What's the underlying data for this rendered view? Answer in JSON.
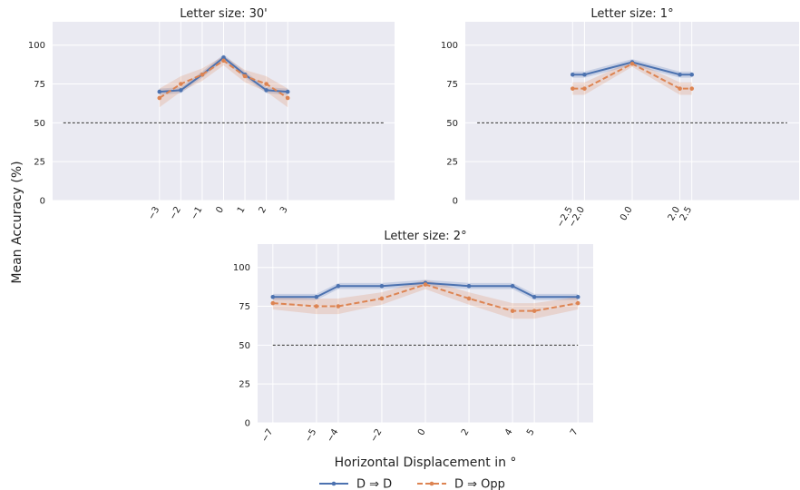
{
  "ylabel": "Mean Accuracy (%)",
  "xlabel": "Horizontal Displacement in °",
  "legend": [
    {
      "label": "D ⇒ D",
      "color": "#4c72b0",
      "dash": "solid"
    },
    {
      "label": "D ⇒ Opp",
      "color": "#dd8452",
      "dash": "dashed"
    }
  ],
  "chart_data": [
    {
      "type": "line",
      "title": "Letter size: 30'",
      "ylim": [
        0,
        115
      ],
      "yticks": [
        0,
        25,
        50,
        75,
        100
      ],
      "xlim": [
        -8,
        8
      ],
      "xticks": [
        -3,
        -2,
        -1,
        0,
        1,
        2,
        3
      ],
      "xticklabels": [
        "−3",
        "−2",
        "−1",
        "0",
        "1",
        "2",
        "3"
      ],
      "chance": {
        "y": 50,
        "x": [
          -7.5,
          7.5
        ]
      },
      "series": [
        {
          "name": "D ⇒ D",
          "x": [
            -3,
            -2,
            -1,
            0,
            1,
            2,
            3
          ],
          "y": [
            70,
            71,
            81,
            92,
            81,
            71,
            70
          ],
          "ci": [
            2,
            2,
            2,
            2,
            2,
            2,
            2
          ]
        },
        {
          "name": "D ⇒ Opp",
          "x": [
            -3,
            -2,
            -1,
            0,
            1,
            2,
            3
          ],
          "y": [
            66,
            75,
            81,
            90,
            80,
            75,
            66
          ],
          "ci": [
            6,
            5,
            4,
            3,
            4,
            5,
            6
          ]
        }
      ]
    },
    {
      "type": "line",
      "title": "Letter size: 1°",
      "ylim": [
        0,
        115
      ],
      "yticks": [
        0,
        25,
        50,
        75,
        100
      ],
      "xlim": [
        -7,
        7
      ],
      "xticks": [
        -2.5,
        -2.0,
        0.0,
        2.0,
        2.5
      ],
      "xticklabels": [
        "−2.5",
        "−2.0",
        "0.0",
        "2.0",
        "2.5"
      ],
      "chance": {
        "y": 50,
        "x": [
          -6.5,
          6.5
        ]
      },
      "series": [
        {
          "name": "D ⇒ D",
          "x": [
            -2.5,
            -2.0,
            0.0,
            2.0,
            2.5
          ],
          "y": [
            81,
            81,
            89,
            81,
            81
          ],
          "ci": [
            2,
            2,
            2,
            2,
            2
          ]
        },
        {
          "name": "D ⇒ Opp",
          "x": [
            -2.5,
            -2.0,
            0.0,
            2.0,
            2.5
          ],
          "y": [
            72,
            72,
            88,
            72,
            72
          ],
          "ci": [
            4,
            4,
            2,
            4,
            4
          ]
        }
      ]
    },
    {
      "type": "line",
      "title": "Letter size: 2°",
      "ylim": [
        0,
        115
      ],
      "yticks": [
        0,
        25,
        50,
        75,
        100
      ],
      "xlim": [
        -7.7,
        7.7
      ],
      "xticks": [
        -7,
        -5,
        -4,
        -2,
        0,
        2,
        4,
        5,
        7
      ],
      "xticklabels": [
        "−7",
        "−5",
        "−4",
        "−2",
        "0",
        "2",
        "4",
        "5",
        "7"
      ],
      "chance": {
        "y": 50,
        "x": [
          -7,
          7
        ]
      },
      "series": [
        {
          "name": "D ⇒ D",
          "x": [
            -7,
            -5,
            -4,
            -2,
            0,
            2,
            4,
            5,
            7
          ],
          "y": [
            81,
            81,
            88,
            88,
            90,
            88,
            88,
            81,
            81
          ],
          "ci": [
            2,
            2,
            2,
            2,
            2,
            2,
            2,
            2,
            2
          ]
        },
        {
          "name": "D ⇒ Opp",
          "x": [
            -7,
            -5,
            -4,
            -2,
            0,
            2,
            4,
            5,
            7
          ],
          "y": [
            77,
            75,
            75,
            80,
            89,
            80,
            72,
            72,
            77
          ],
          "ci": [
            4,
            5,
            5,
            4,
            3,
            4,
            5,
            5,
            4
          ]
        }
      ]
    }
  ]
}
